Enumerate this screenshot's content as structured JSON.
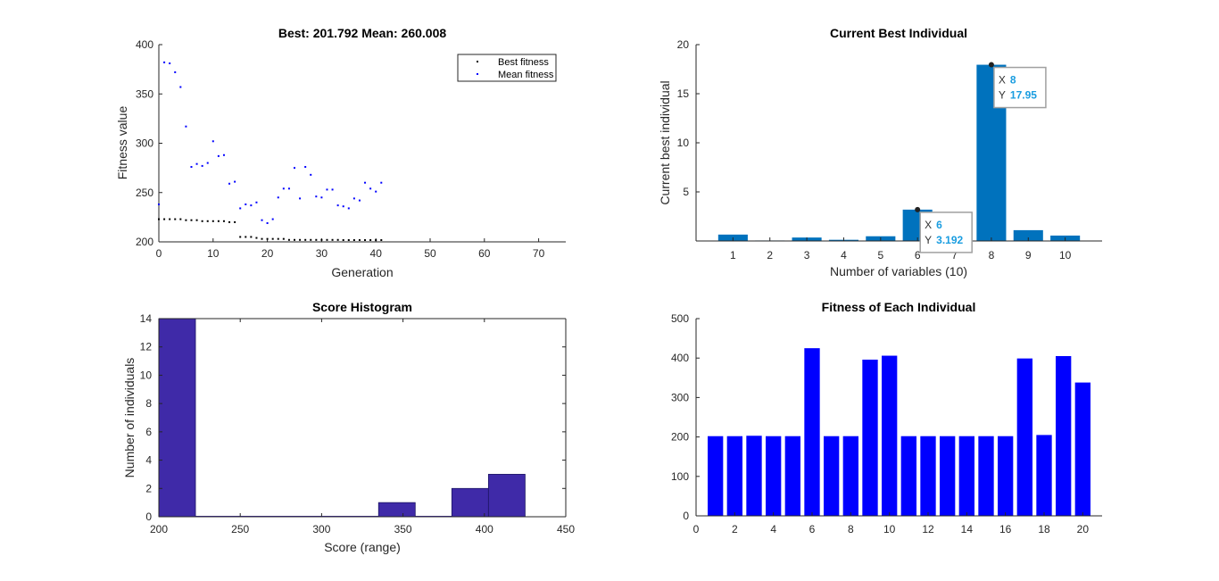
{
  "chart_data": [
    {
      "type": "scatter",
      "title": "Best: 201.792 Mean: 260.008",
      "xlabel": "Generation",
      "ylabel": "Fitness value",
      "xlim": [
        0,
        75
      ],
      "ylim": [
        200,
        400
      ],
      "xticks": [
        "0",
        "10",
        "20",
        "30",
        "40",
        "50",
        "60",
        "70"
      ],
      "yticks": [
        "200",
        "250",
        "300",
        "350",
        "400"
      ],
      "legend_position": "top-right",
      "series": [
        {
          "name": "Best fitness",
          "color": "#000000",
          "x": [
            0,
            1,
            2,
            3,
            4,
            5,
            6,
            7,
            8,
            9,
            10,
            11,
            12,
            13,
            14,
            15,
            16,
            17,
            18,
            19,
            20,
            21,
            22,
            23,
            24,
            25,
            26,
            27,
            28,
            29,
            30,
            31,
            32,
            33,
            34,
            35,
            36,
            37,
            38,
            39,
            40,
            41
          ],
          "y": [
            223,
            223,
            223,
            223,
            223,
            222,
            222,
            222,
            221,
            221,
            221,
            221,
            221,
            220,
            220,
            205,
            205,
            205,
            204,
            203,
            203,
            203,
            203,
            203,
            202,
            202,
            202,
            202,
            202,
            202,
            202,
            202,
            202,
            202,
            201.8,
            201.8,
            201.8,
            201.8,
            201.8,
            201.8,
            201.8,
            201.8
          ]
        },
        {
          "name": "Mean fitness",
          "color": "#0000ff",
          "x": [
            0,
            1,
            2,
            3,
            4,
            5,
            6,
            7,
            8,
            9,
            10,
            11,
            12,
            13,
            14,
            15,
            16,
            17,
            18,
            19,
            20,
            21,
            22,
            23,
            24,
            25,
            26,
            27,
            28,
            29,
            30,
            31,
            32,
            33,
            34,
            35,
            36,
            37,
            38,
            39,
            40,
            41
          ],
          "y": [
            238,
            382,
            381,
            372,
            357,
            317,
            276,
            279,
            277,
            280,
            302,
            287,
            288,
            259,
            261,
            234,
            238,
            237,
            240,
            222,
            219,
            223,
            245,
            254,
            254,
            275,
            244,
            276,
            268,
            246,
            245,
            253,
            253,
            237,
            236,
            234,
            244,
            242,
            260,
            254,
            251,
            260
          ]
        }
      ]
    },
    {
      "type": "bar",
      "title": "Current Best Individual",
      "xlabel": "Number of variables (10)",
      "ylabel": "Current best individual",
      "ylim": [
        0,
        20
      ],
      "xticks": [
        "1",
        "2",
        "3",
        "4",
        "5",
        "6",
        "7",
        "8",
        "9",
        "10"
      ],
      "yticks": [
        "5",
        "10",
        "15",
        "20"
      ],
      "categories": [
        "1",
        "2",
        "3",
        "4",
        "5",
        "6",
        "7",
        "8",
        "9",
        "10"
      ],
      "values": [
        0.65,
        0.05,
        0.35,
        0.12,
        0.48,
        3.192,
        0.4,
        17.95,
        1.1,
        0.55
      ],
      "color": "#0072bd",
      "datatips": [
        {
          "index": 5,
          "x_label": "X",
          "x_value": "6",
          "y_label": "Y",
          "y_value": "3.192"
        },
        {
          "index": 7,
          "x_label": "X",
          "x_value": "8",
          "y_label": "Y",
          "y_value": "17.95"
        }
      ]
    },
    {
      "type": "bar",
      "title": "Score Histogram",
      "xlabel": "Score (range)",
      "ylabel": "Number of individuals",
      "xlim": [
        200,
        450
      ],
      "ylim": [
        0,
        14
      ],
      "xticks": [
        "200",
        "250",
        "300",
        "350",
        "400",
        "450"
      ],
      "yticks": [
        "0",
        "2",
        "4",
        "6",
        "8",
        "10",
        "12",
        "14"
      ],
      "bins": [
        {
          "x0": 200,
          "x1": 222.5,
          "count": 14
        },
        {
          "x0": 335,
          "x1": 357.5,
          "count": 1
        },
        {
          "x0": 380,
          "x1": 402.5,
          "count": 2
        },
        {
          "x0": 402.5,
          "x1": 425,
          "count": 3
        }
      ],
      "color": "#3f2aa8"
    },
    {
      "type": "bar",
      "title": "Fitness of Each Individual",
      "xlabel": "",
      "ylabel": "",
      "xlim": [
        0,
        21
      ],
      "ylim": [
        0,
        500
      ],
      "xticks": [
        "0",
        "2",
        "4",
        "6",
        "8",
        "10",
        "12",
        "14",
        "16",
        "18",
        "20"
      ],
      "yticks": [
        "0",
        "100",
        "200",
        "300",
        "400",
        "500"
      ],
      "categories": [
        "1",
        "2",
        "3",
        "4",
        "5",
        "6",
        "7",
        "8",
        "9",
        "10",
        "11",
        "12",
        "13",
        "14",
        "15",
        "16",
        "17",
        "18",
        "19",
        "20"
      ],
      "values": [
        202,
        202,
        203,
        202,
        202,
        425,
        202,
        202,
        396,
        406,
        202,
        202,
        202,
        202,
        202,
        202,
        399,
        205,
        405,
        338
      ],
      "color": "#0000ff"
    }
  ]
}
